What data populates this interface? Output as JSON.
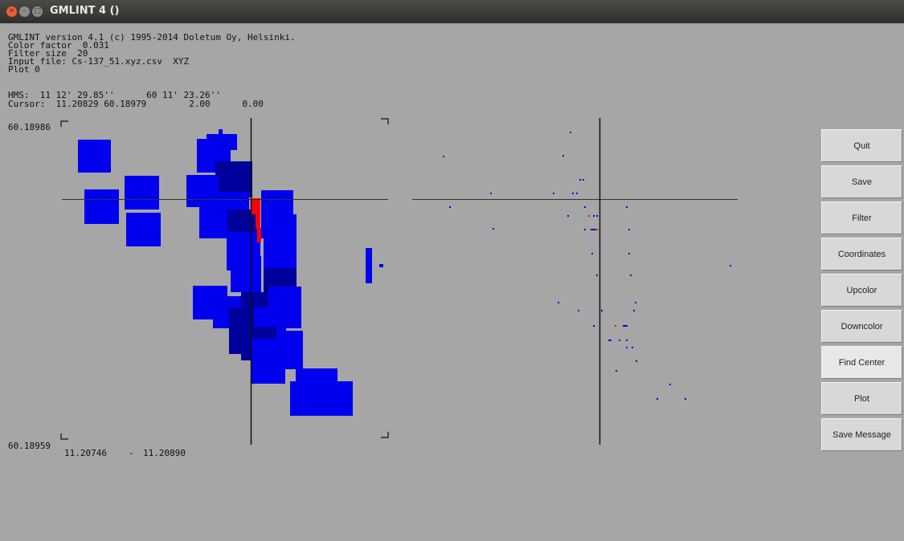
{
  "window": {
    "title": "GMLINT 4 ()"
  },
  "info": {
    "lines": [
      "GMLINT version 4.1 (c) 1995-2014 Doletum Oy, Helsinki.",
      "Color factor  0.031",
      "Filter size  20",
      "Input file: Cs-137_51.xyz.csv  XYZ",
      "Plot 0"
    ],
    "hms": "HMS:  11 12' 29.85''      60 11' 23.26''",
    "cursor": "Cursor:  11.20829 60.18979        2.00      0.00"
  },
  "axis": {
    "y_top": "60.18986",
    "y_bottom": "60.18959",
    "x_left": "11.20746",
    "x_sep": "-",
    "x_right": "11.20890"
  },
  "buttons": [
    {
      "id": "quit",
      "label": "Quit"
    },
    {
      "id": "save",
      "label": "Save"
    },
    {
      "id": "filter",
      "label": "Filter"
    },
    {
      "id": "coordinates",
      "label": "Coordinates"
    },
    {
      "id": "upcolor",
      "label": "Upcolor"
    },
    {
      "id": "downcolor",
      "label": "Downcolor"
    },
    {
      "id": "find-center",
      "label": "Find Center",
      "active": true
    },
    {
      "id": "plot",
      "label": "Plot"
    },
    {
      "id": "save-message",
      "label": "Save Message"
    }
  ],
  "colors": {
    "blue": "#0000ee",
    "dark_blue": "#00009a",
    "red": "#ff0000",
    "background": "#a6a6a6"
  }
}
